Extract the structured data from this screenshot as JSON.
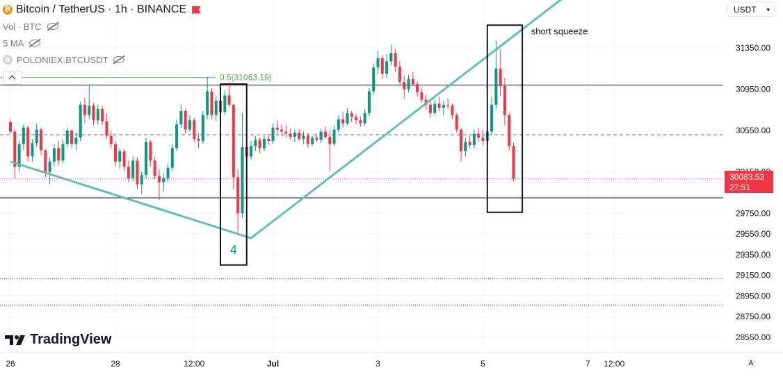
{
  "header": {
    "symbol_title": "Bitcoin / TetherUS · 1h · BINANCE",
    "volume_label": "Vol · BTC",
    "ma_label": "5 MA",
    "compare_symbol": "POLONIEX:BTCUSDT",
    "currency": "USDT"
  },
  "branding": {
    "logo_text": "TradingView"
  },
  "buttons": {
    "auto_scale": "A"
  },
  "last_price": {
    "price": "30083.53",
    "countdown": "27:51",
    "color": "#f23645"
  },
  "colors": {
    "up": "#089981",
    "down": "#f23645",
    "trendline": "#5fc3a3",
    "fib": "#4caf50"
  },
  "annotations": {
    "fib_label": "0.5(31063.19)",
    "wave_label": "4",
    "squeeze_label": "short squeeze"
  },
  "chart_data": {
    "type": "candlestick",
    "y_axis": {
      "ticks": [
        31350,
        30950,
        30550,
        30150,
        29750,
        29550,
        29350,
        29150,
        28950,
        28750,
        28550
      ],
      "tick_labels": [
        "31350.00",
        "30950.00",
        "30550.00",
        "30150.00",
        "29750.00",
        "29550.00",
        "29350.00",
        "29150.00",
        "28950.00",
        "28750.00",
        "28550.00"
      ],
      "range": [
        28400,
        31800
      ]
    },
    "x_axis": {
      "tick_labels": [
        "26",
        "28",
        "12:00",
        "Jul",
        "3",
        "5",
        "7",
        "12:00"
      ]
    },
    "horizontal_levels": [
      {
        "price": 30990,
        "style": "solid"
      },
      {
        "price": 30510,
        "style": "dashed"
      },
      {
        "price": 29900,
        "style": "solid"
      },
      {
        "price": 29120,
        "style": "dotted"
      },
      {
        "price": 28860,
        "style": "dotted"
      }
    ],
    "fib_level": {
      "price": 31063.19,
      "ratio": 0.5
    },
    "trendline": [
      {
        "date": "2023-06-26 00:00",
        "price": 30250
      },
      {
        "date": "2023-06-30 14:00",
        "price": 29510
      },
      {
        "date": "2023-07-07 05:00",
        "price": 32100
      }
    ],
    "candles": [
      [
        "2023-06-26 00:00",
        30630,
        30660,
        30520,
        30540
      ],
      [
        "2023-06-26 02:00",
        30540,
        30560,
        30080,
        30200
      ],
      [
        "2023-06-26 04:00",
        30200,
        30450,
        30150,
        30420
      ],
      [
        "2023-06-26 06:00",
        30420,
        30610,
        30360,
        30580
      ],
      [
        "2023-06-26 08:00",
        30580,
        30600,
        30250,
        30300
      ],
      [
        "2023-06-26 10:00",
        30300,
        30470,
        30250,
        30430
      ],
      [
        "2023-06-26 12:00",
        30430,
        30620,
        30390,
        30560
      ],
      [
        "2023-06-26 14:00",
        30560,
        30580,
        30310,
        30360
      ],
      [
        "2023-06-26 16:00",
        30360,
        30370,
        30100,
        30150
      ],
      [
        "2023-06-26 18:00",
        30150,
        30290,
        30030,
        30250
      ],
      [
        "2023-06-26 20:00",
        30250,
        30420,
        30210,
        30380
      ],
      [
        "2023-06-26 22:00",
        30380,
        30450,
        30220,
        30260
      ],
      [
        "2023-06-27 00:00",
        30260,
        30460,
        30230,
        30420
      ],
      [
        "2023-06-27 02:00",
        30420,
        30580,
        30390,
        30550
      ],
      [
        "2023-06-27 04:00",
        30550,
        30560,
        30380,
        30420
      ],
      [
        "2023-06-27 06:00",
        30420,
        30530,
        30360,
        30480
      ],
      [
        "2023-06-27 08:00",
        30480,
        30830,
        30450,
        30800
      ],
      [
        "2023-06-27 10:00",
        30800,
        30870,
        30620,
        30700
      ],
      [
        "2023-06-27 12:00",
        30700,
        30990,
        30660,
        30790
      ],
      [
        "2023-06-27 14:00",
        30790,
        30820,
        30600,
        30650
      ],
      [
        "2023-06-27 16:00",
        30650,
        30800,
        30610,
        30760
      ],
      [
        "2023-06-27 18:00",
        30760,
        30790,
        30600,
        30640
      ],
      [
        "2023-06-27 20:00",
        30640,
        30720,
        30470,
        30500
      ],
      [
        "2023-06-27 22:00",
        30500,
        30550,
        30380,
        30420
      ],
      [
        "2023-06-28 00:00",
        30420,
        30450,
        30200,
        30250
      ],
      [
        "2023-06-28 02:00",
        30250,
        30380,
        30180,
        30350
      ],
      [
        "2023-06-28 04:00",
        30350,
        30370,
        30160,
        30200
      ],
      [
        "2023-06-28 06:00",
        30200,
        30260,
        30050,
        30090
      ],
      [
        "2023-06-28 08:00",
        30090,
        30300,
        30060,
        30260
      ],
      [
        "2023-06-28 10:00",
        30260,
        30290,
        29980,
        30030
      ],
      [
        "2023-06-28 12:00",
        30030,
        30150,
        29930,
        30120
      ],
      [
        "2023-06-28 14:00",
        30120,
        30480,
        30090,
        30440
      ],
      [
        "2023-06-28 16:00",
        30440,
        30460,
        30200,
        30260
      ],
      [
        "2023-06-28 18:00",
        30260,
        30300,
        30080,
        30110
      ],
      [
        "2023-06-28 20:00",
        30110,
        30180,
        29880,
        30050
      ],
      [
        "2023-06-28 22:00",
        30050,
        30140,
        29960,
        30090
      ],
      [
        "2023-06-29 00:00",
        30090,
        30230,
        30050,
        30190
      ],
      [
        "2023-06-29 02:00",
        30190,
        30420,
        30160,
        30380
      ],
      [
        "2023-06-29 04:00",
        30380,
        30660,
        30350,
        30610
      ],
      [
        "2023-06-29 06:00",
        30610,
        30800,
        30580,
        30740
      ],
      [
        "2023-06-29 08:00",
        30740,
        30760,
        30520,
        30560
      ],
      [
        "2023-06-29 10:00",
        30560,
        30700,
        30540,
        30650
      ],
      [
        "2023-06-29 12:00",
        30650,
        30670,
        30440,
        30470
      ],
      [
        "2023-06-29 14:00",
        30470,
        30530,
        30380,
        30450
      ],
      [
        "2023-06-29 16:00",
        30450,
        30740,
        30420,
        30700
      ],
      [
        "2023-06-29 18:00",
        30700,
        31070,
        30660,
        30930
      ],
      [
        "2023-06-29 20:00",
        30930,
        30960,
        30660,
        30700
      ],
      [
        "2023-06-29 22:00",
        30700,
        30880,
        30640,
        30840
      ],
      [
        "2023-06-30 00:00",
        30840,
        30870,
        30680,
        30730
      ],
      [
        "2023-06-30 02:00",
        30730,
        30940,
        30700,
        30890
      ],
      [
        "2023-06-30 04:00",
        30890,
        31020,
        30780,
        30800
      ],
      [
        "2023-06-30 06:00",
        30800,
        30810,
        29980,
        30100
      ],
      [
        "2023-06-30 08:00",
        30100,
        30180,
        29540,
        29750
      ],
      [
        "2023-06-30 10:00",
        29750,
        30720,
        29700,
        30390
      ],
      [
        "2023-06-30 12:00",
        30390,
        30420,
        30250,
        30300
      ],
      [
        "2023-06-30 14:00",
        30300,
        30450,
        30270,
        30400
      ],
      [
        "2023-06-30 16:00",
        30400,
        30500,
        30350,
        30460
      ],
      [
        "2023-06-30 18:00",
        30460,
        30480,
        30330,
        30380
      ],
      [
        "2023-06-30 20:00",
        30380,
        30500,
        30350,
        30470
      ],
      [
        "2023-06-30 22:00",
        30470,
        30520,
        30410,
        30450
      ],
      [
        "2023-07-01 00:00",
        30450,
        30620,
        30420,
        30580
      ],
      [
        "2023-07-01 02:00",
        30580,
        30650,
        30520,
        30560
      ],
      [
        "2023-07-01 04:00",
        30560,
        30610,
        30500,
        30540
      ],
      [
        "2023-07-01 06:00",
        30540,
        30600,
        30480,
        30520
      ],
      [
        "2023-07-01 08:00",
        30520,
        30570,
        30460,
        30490
      ],
      [
        "2023-07-01 10:00",
        30490,
        30560,
        30440,
        30530
      ],
      [
        "2023-07-01 12:00",
        30530,
        30560,
        30450,
        30470
      ],
      [
        "2023-07-01 14:00",
        30470,
        30540,
        30420,
        30500
      ],
      [
        "2023-07-01 16:00",
        30500,
        30530,
        30380,
        30420
      ],
      [
        "2023-07-01 18:00",
        30420,
        30500,
        30400,
        30480
      ],
      [
        "2023-07-01 20:00",
        30480,
        30520,
        30440,
        30460
      ],
      [
        "2023-07-01 22:00",
        30460,
        30570,
        30430,
        30540
      ],
      [
        "2023-07-02 00:00",
        30540,
        30590,
        30470,
        30490
      ],
      [
        "2023-07-02 02:00",
        30490,
        30550,
        30160,
        30420
      ],
      [
        "2023-07-02 04:00",
        30420,
        30600,
        30400,
        30560
      ],
      [
        "2023-07-02 06:00",
        30560,
        30700,
        30530,
        30660
      ],
      [
        "2023-07-02 08:00",
        30660,
        30730,
        30580,
        30620
      ],
      [
        "2023-07-02 10:00",
        30620,
        30770,
        30600,
        30720
      ],
      [
        "2023-07-02 12:00",
        30720,
        30740,
        30630,
        30680
      ],
      [
        "2023-07-02 14:00",
        30680,
        30710,
        30610,
        30650
      ],
      [
        "2023-07-02 16:00",
        30650,
        30690,
        30590,
        30620
      ],
      [
        "2023-07-02 18:00",
        30620,
        30760,
        30600,
        30720
      ],
      [
        "2023-07-02 20:00",
        30720,
        30960,
        30690,
        30930
      ],
      [
        "2023-07-02 22:00",
        30930,
        31200,
        30900,
        31160
      ],
      [
        "2023-07-03 00:00",
        31160,
        31320,
        31100,
        31250
      ],
      [
        "2023-07-03 02:00",
        31250,
        31280,
        31050,
        31100
      ],
      [
        "2023-07-03 04:00",
        31100,
        31290,
        31060,
        31220
      ],
      [
        "2023-07-03 06:00",
        31220,
        31380,
        31180,
        31300
      ],
      [
        "2023-07-03 08:00",
        31300,
        31340,
        31120,
        31170
      ],
      [
        "2023-07-03 10:00",
        31170,
        31220,
        30980,
        31020
      ],
      [
        "2023-07-03 12:00",
        31020,
        31080,
        30860,
        30950
      ],
      [
        "2023-07-03 14:00",
        30950,
        31090,
        30920,
        31050
      ],
      [
        "2023-07-03 16:00",
        31050,
        31120,
        30980,
        31000
      ],
      [
        "2023-07-03 18:00",
        31000,
        31030,
        30880,
        30920
      ],
      [
        "2023-07-03 20:00",
        30920,
        30960,
        30820,
        30850
      ],
      [
        "2023-07-03 22:00",
        30850,
        30900,
        30750,
        30800
      ],
      [
        "2023-07-04 00:00",
        30800,
        30850,
        30680,
        30720
      ],
      [
        "2023-07-04 02:00",
        30720,
        30850,
        30700,
        30810
      ],
      [
        "2023-07-04 04:00",
        30810,
        30880,
        30740,
        30770
      ],
      [
        "2023-07-04 06:00",
        30770,
        30840,
        30700,
        30800
      ],
      [
        "2023-07-04 08:00",
        30800,
        30860,
        30760,
        30790
      ],
      [
        "2023-07-04 10:00",
        30790,
        30810,
        30660,
        30700
      ],
      [
        "2023-07-04 12:00",
        30700,
        30720,
        30530,
        30560
      ],
      [
        "2023-07-04 14:00",
        30560,
        30580,
        30250,
        30350
      ],
      [
        "2023-07-04 16:00",
        30350,
        30480,
        30300,
        30440
      ],
      [
        "2023-07-04 18:00",
        30440,
        30500,
        30380,
        30410
      ],
      [
        "2023-07-04 20:00",
        30410,
        30560,
        30380,
        30520
      ],
      [
        "2023-07-04 22:00",
        30520,
        30580,
        30440,
        30480
      ],
      [
        "2023-07-05 00:00",
        30480,
        30560,
        30410,
        30450
      ],
      [
        "2023-07-05 02:00",
        30450,
        30580,
        30420,
        30540
      ],
      [
        "2023-07-05 04:00",
        30540,
        30880,
        30510,
        30800
      ],
      [
        "2023-07-05 06:00",
        30800,
        31420,
        30760,
        31150
      ],
      [
        "2023-07-05 08:00",
        31150,
        31340,
        30880,
        30980
      ],
      [
        "2023-07-05 10:00",
        30980,
        31060,
        30600,
        30700
      ],
      [
        "2023-07-05 12:00",
        30700,
        30720,
        30350,
        30400
      ],
      [
        "2023-07-05 14:00",
        30400,
        30430,
        30060,
        30083.53
      ]
    ]
  }
}
